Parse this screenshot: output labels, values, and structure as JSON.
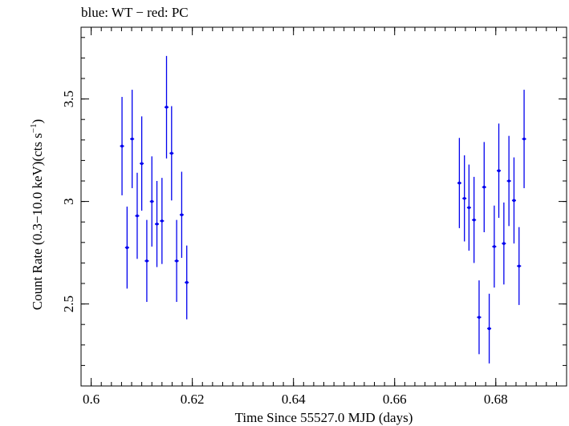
{
  "chart_data": {
    "type": "scatter",
    "title": "blue: WT − red: PC",
    "xlabel": "Time Since 55527.0 MJD (days)",
    "ylabel_main": "Count Rate (0.3−10.0 keV)(cts s",
    "ylabel_sup": "−1",
    "ylabel_close": ")",
    "xlim": [
      0.598,
      0.694
    ],
    "ylim": [
      2.1,
      3.85
    ],
    "xticks": [
      0.6,
      0.62,
      0.64,
      0.66,
      0.68
    ],
    "xtick_labels": [
      "0.6",
      "0.62",
      "0.64",
      "0.66",
      "0.68"
    ],
    "yticks": [
      2.5,
      3.0,
      3.5
    ],
    "ytick_labels": [
      "2.5",
      "3",
      "3.5"
    ],
    "x_minor_step": 0.002,
    "y_minor_step": 0.1,
    "series": [
      {
        "name": "WT",
        "color": "#0000ee",
        "points": [
          {
            "x": 0.6061,
            "y": 3.27,
            "yerr": 0.24
          },
          {
            "x": 0.6071,
            "y": 2.775,
            "yerr": 0.2
          },
          {
            "x": 0.6081,
            "y": 3.305,
            "yerr": 0.24
          },
          {
            "x": 0.6091,
            "y": 2.93,
            "yerr": 0.21
          },
          {
            "x": 0.61,
            "y": 3.185,
            "yerr": 0.23
          },
          {
            "x": 0.611,
            "y": 2.71,
            "yerr": 0.2
          },
          {
            "x": 0.612,
            "y": 3.0,
            "yerr": 0.22
          },
          {
            "x": 0.613,
            "y": 2.89,
            "yerr": 0.21
          },
          {
            "x": 0.614,
            "y": 2.905,
            "yerr": 0.21
          },
          {
            "x": 0.6149,
            "y": 3.46,
            "yerr": 0.25
          },
          {
            "x": 0.6159,
            "y": 3.235,
            "yerr": 0.23
          },
          {
            "x": 0.6169,
            "y": 2.71,
            "yerr": 0.2
          },
          {
            "x": 0.6179,
            "y": 2.935,
            "yerr": 0.21
          },
          {
            "x": 0.6189,
            "y": 2.605,
            "yerr": 0.18
          },
          {
            "x": 0.6728,
            "y": 3.09,
            "yerr": 0.22
          },
          {
            "x": 0.6738,
            "y": 3.015,
            "yerr": 0.21
          },
          {
            "x": 0.6747,
            "y": 2.97,
            "yerr": 0.21
          },
          {
            "x": 0.6757,
            "y": 2.91,
            "yerr": 0.21
          },
          {
            "x": 0.6767,
            "y": 2.435,
            "yerr": 0.18
          },
          {
            "x": 0.6777,
            "y": 3.07,
            "yerr": 0.22
          },
          {
            "x": 0.6787,
            "y": 2.38,
            "yerr": 0.17
          },
          {
            "x": 0.6797,
            "y": 2.78,
            "yerr": 0.2
          },
          {
            "x": 0.6806,
            "y": 3.15,
            "yerr": 0.23
          },
          {
            "x": 0.6816,
            "y": 2.795,
            "yerr": 0.2
          },
          {
            "x": 0.6826,
            "y": 3.1,
            "yerr": 0.22
          },
          {
            "x": 0.6836,
            "y": 3.005,
            "yerr": 0.21
          },
          {
            "x": 0.6846,
            "y": 2.685,
            "yerr": 0.19
          },
          {
            "x": 0.6856,
            "y": 3.305,
            "yerr": 0.24
          }
        ]
      }
    ]
  }
}
